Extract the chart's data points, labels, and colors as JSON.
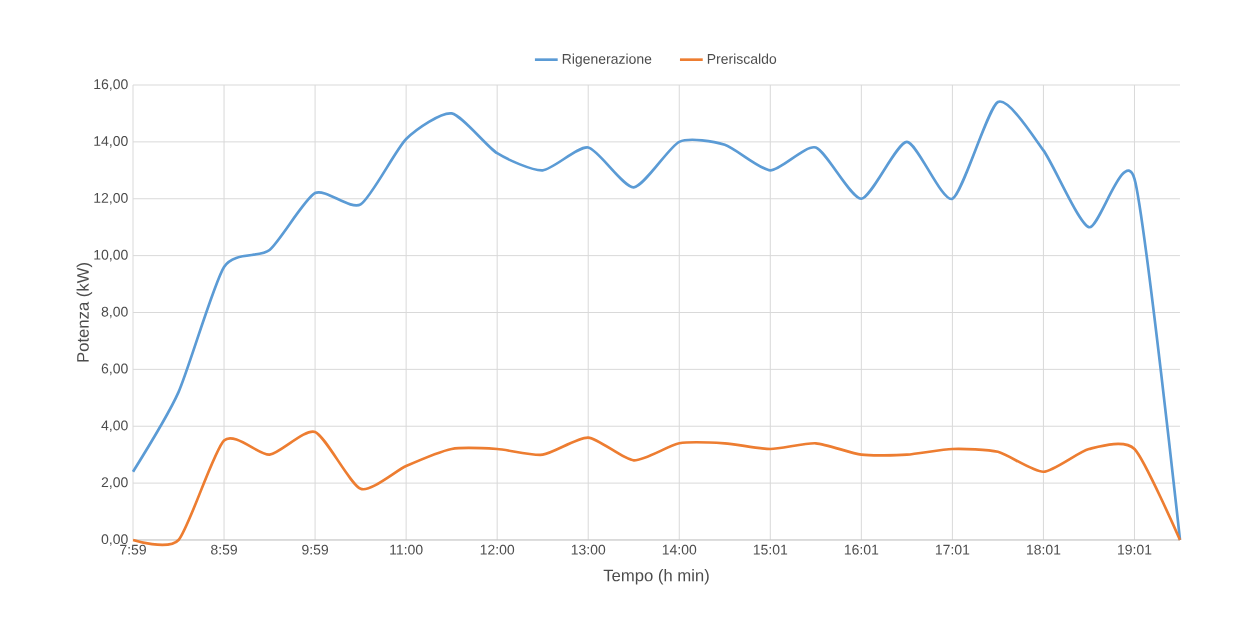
{
  "chart_data": {
    "type": "line",
    "xlabel": "Tempo (h min)",
    "ylabel": "Potenza (kW)",
    "categories": [
      "7:59",
      null,
      "8:59",
      null,
      "9:59",
      null,
      "11:00",
      null,
      "12:00",
      null,
      "13:00",
      null,
      "14:00",
      null,
      "15:01",
      null,
      "16:01",
      null,
      "17:01",
      null,
      "18:01",
      null,
      "19:01",
      null
    ],
    "series": [
      {
        "name": "Rigenerazione",
        "color": "#5b9bd5",
        "values": [
          2.4,
          5.2,
          9.6,
          10.2,
          12.2,
          11.8,
          14.1,
          15.0,
          13.6,
          13.0,
          13.8,
          12.4,
          14.0,
          13.9,
          13.0,
          13.8,
          12.0,
          14.0,
          12.0,
          15.4,
          13.7,
          11.0,
          12.7,
          0
        ]
      },
      {
        "name": "Preriscaldo",
        "color": "#ed7d31",
        "values": [
          0,
          0,
          3.5,
          3.0,
          3.8,
          1.8,
          2.6,
          3.2,
          3.2,
          3.0,
          3.6,
          2.8,
          3.4,
          3.4,
          3.2,
          3.4,
          3.0,
          3.0,
          3.2,
          3.1,
          2.4,
          3.2,
          3.2,
          0
        ]
      }
    ],
    "ylim": [
      0,
      16
    ],
    "yticks": [
      {
        "value": 0,
        "label": "0,00"
      },
      {
        "value": 2,
        "label": "2,00"
      },
      {
        "value": 4,
        "label": "4,00"
      },
      {
        "value": 6,
        "label": "6,00"
      },
      {
        "value": 8,
        "label": "8,00"
      },
      {
        "value": 10,
        "label": "10,00"
      },
      {
        "value": 12,
        "label": "12,00"
      },
      {
        "value": 14,
        "label": "14,00"
      },
      {
        "value": 16,
        "label": "16,00"
      }
    ],
    "grid": true,
    "legend": "top",
    "marker": "none",
    "line_style": "solid"
  }
}
